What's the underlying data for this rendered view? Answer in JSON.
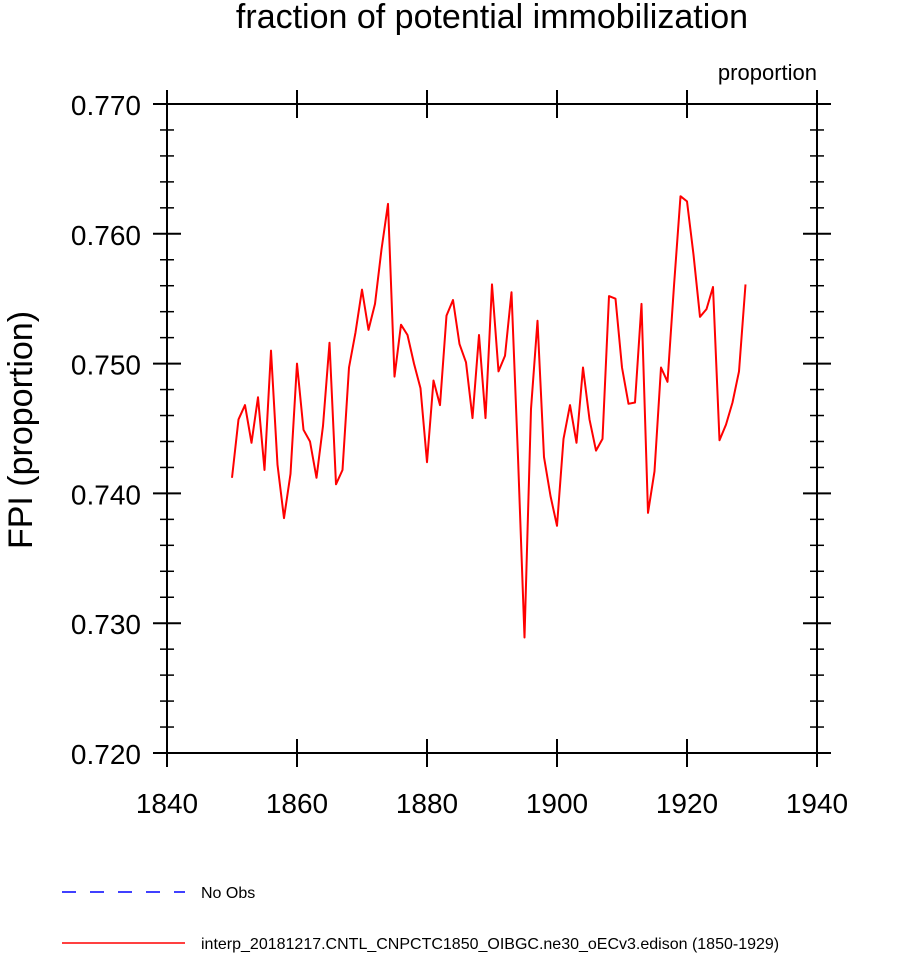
{
  "chart_data": {
    "type": "line",
    "title": "fraction of potential immobilization",
    "units_label": "proportion",
    "ylabel": "FPI  (proportion)",
    "xlabel": "",
    "xlim": [
      1840,
      1940
    ],
    "ylim": [
      0.72,
      0.77
    ],
    "x_ticks": [
      1840,
      1860,
      1880,
      1900,
      1920,
      1940
    ],
    "x_tick_labels": [
      "1840",
      "1860",
      "1880",
      "1900",
      "1920",
      "1940"
    ],
    "y_ticks": [
      0.72,
      0.73,
      0.74,
      0.75,
      0.76,
      0.77
    ],
    "y_tick_labels": [
      "0.720",
      "0.730",
      "0.740",
      "0.750",
      "0.760",
      "0.770"
    ],
    "grid": false,
    "series": [
      {
        "name": "No Obs",
        "color": "#0000ff",
        "dash": "dashed",
        "x": [],
        "values": []
      },
      {
        "name": "interp_20181217.CNTL_CNPCTC1850_OIBGC.ne30_oECv3.edison (1850-1929)",
        "color": "#ff0000",
        "dash": "solid",
        "x": [
          1850,
          1851,
          1852,
          1853,
          1854,
          1855,
          1856,
          1857,
          1858,
          1859,
          1860,
          1861,
          1862,
          1863,
          1864,
          1865,
          1866,
          1867,
          1868,
          1869,
          1870,
          1871,
          1872,
          1873,
          1874,
          1875,
          1876,
          1877,
          1878,
          1879,
          1880,
          1881,
          1882,
          1883,
          1884,
          1885,
          1886,
          1887,
          1888,
          1889,
          1890,
          1891,
          1892,
          1893,
          1894,
          1895,
          1896,
          1897,
          1898,
          1899,
          1900,
          1901,
          1902,
          1903,
          1904,
          1905,
          1906,
          1907,
          1908,
          1909,
          1910,
          1911,
          1912,
          1913,
          1914,
          1915,
          1916,
          1917,
          1918,
          1919,
          1920,
          1921,
          1922,
          1923,
          1924,
          1925,
          1926,
          1927,
          1928,
          1929
        ],
        "values": [
          0.7412,
          0.7457,
          0.7468,
          0.7439,
          0.7474,
          0.7418,
          0.751,
          0.7422,
          0.7381,
          0.7415,
          0.75,
          0.7449,
          0.744,
          0.7412,
          0.7452,
          0.7516,
          0.7407,
          0.7418,
          0.7497,
          0.7524,
          0.7557,
          0.7526,
          0.7546,
          0.7588,
          0.7623,
          0.749,
          0.753,
          0.7522,
          0.75,
          0.7481,
          0.7424,
          0.7487,
          0.7468,
          0.7537,
          0.7549,
          0.7515,
          0.7501,
          0.7458,
          0.7522,
          0.7458,
          0.7561,
          0.7494,
          0.7506,
          0.7555,
          0.7428,
          0.7289,
          0.7465,
          0.7533,
          0.7428,
          0.7398,
          0.7375,
          0.7442,
          0.7468,
          0.7439,
          0.7497,
          0.7457,
          0.7433,
          0.7442,
          0.7552,
          0.755,
          0.7497,
          0.7469,
          0.747,
          0.7546,
          0.7385,
          0.7417,
          0.7497,
          0.7486,
          0.756,
          0.7629,
          0.7625,
          0.7584,
          0.7536,
          0.7542,
          0.7559,
          0.7441,
          0.7453,
          0.747,
          0.7494,
          0.7561
        ]
      }
    ],
    "legend": [
      {
        "label": "No Obs",
        "color": "#0000ff",
        "dash": "dashed"
      },
      {
        "label": "interp_20181217.CNTL_CNPCTC1850_OIBGC.ne30_oECv3.edison (1850-1929)",
        "color": "#ff0000",
        "dash": "solid"
      }
    ],
    "legend_position": "bottom"
  }
}
